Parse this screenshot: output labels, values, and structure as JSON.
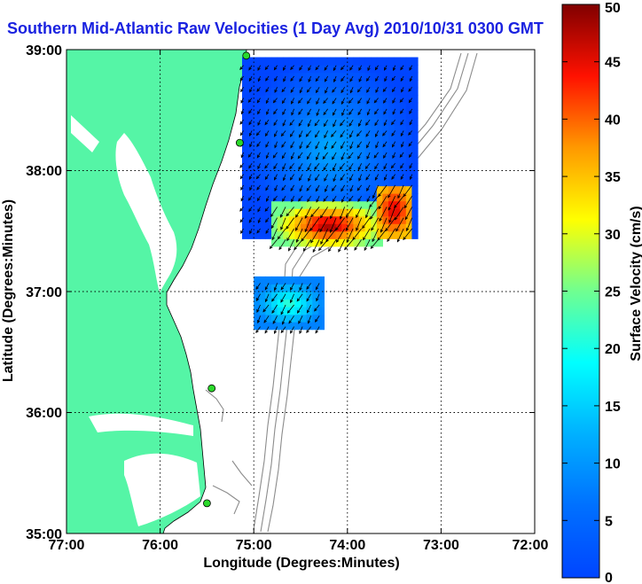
{
  "title": "Southern Mid-Atlantic Raw Velocities (1 Day Avg) 2010/10/31 0300 GMT",
  "axes": {
    "xlabel": "Longitude (Degrees:Minutes)",
    "ylabel": "Latitude (Degrees:Minutes)",
    "xticks": [
      "77:00",
      "76:00",
      "75:00",
      "74:00",
      "73:00",
      "72:00"
    ],
    "yticks": [
      "39:00",
      "38:00",
      "37:00",
      "36:00",
      "35:00"
    ],
    "lon_range": [
      -77,
      -72
    ],
    "lat_range": [
      35,
      39
    ],
    "grid": "dotted"
  },
  "colorbar": {
    "label": "Surface Velocity (cm/s)",
    "ticks": [
      "50",
      "45",
      "40",
      "35",
      "30",
      "25",
      "20",
      "15",
      "10",
      "5",
      "0"
    ],
    "range": [
      0,
      50
    ]
  },
  "colors": {
    "land": "#55f5a6",
    "water": "#ffffff",
    "title": "#1a22e0",
    "arrows": "#000000",
    "bathymetry": "#8c8c8c",
    "stations": "#2bd92b"
  },
  "chart_data": {
    "type": "heatmap",
    "title": "Southern Mid-Atlantic Raw Velocities (1 Day Avg) 2010/10/31 0300 GMT",
    "xlabel": "Longitude (Degrees:Minutes)",
    "ylabel": "Latitude (Degrees:Minutes)",
    "variable": "Surface Velocity (cm/s)",
    "xlim": [
      -77,
      -72
    ],
    "ylim": [
      35,
      39
    ],
    "vlim": [
      0,
      50
    ],
    "hf_radar_stations": [
      {
        "lon": -75.08,
        "lat": 38.95
      },
      {
        "lon": -75.15,
        "lat": 38.23
      },
      {
        "lon": -75.45,
        "lat": 36.2
      },
      {
        "lon": -75.5,
        "lat": 35.25
      }
    ],
    "velocity_regions": [
      {
        "name": "north",
        "lon": [
          -75.12,
          -73.25
        ],
        "lat": [
          37.45,
          38.95
        ],
        "speed_range": [
          0,
          12
        ]
      },
      {
        "name": "southern edge",
        "lon": [
          -74.8,
          -73.6
        ],
        "lat": [
          37.35,
          37.75
        ],
        "speed_range": [
          25,
          50
        ]
      },
      {
        "name": "east core",
        "lon": [
          -73.7,
          -73.3
        ],
        "lat": [
          37.45,
          37.9
        ],
        "speed_range": [
          35,
          47
        ]
      },
      {
        "name": "lower patch",
        "lon": [
          -75.0,
          -74.25
        ],
        "lat": [
          36.7,
          37.1
        ],
        "speed_range": [
          8,
          22
        ]
      }
    ],
    "vector_direction": "south-southwest"
  }
}
